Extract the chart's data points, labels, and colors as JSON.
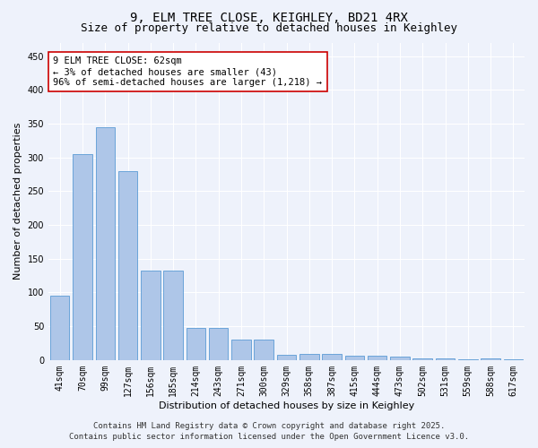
{
  "title1": "9, ELM TREE CLOSE, KEIGHLEY, BD21 4RX",
  "title2": "Size of property relative to detached houses in Keighley",
  "xlabel": "Distribution of detached houses by size in Keighley",
  "ylabel": "Number of detached properties",
  "categories": [
    "41sqm",
    "70sqm",
    "99sqm",
    "127sqm",
    "156sqm",
    "185sqm",
    "214sqm",
    "243sqm",
    "271sqm",
    "300sqm",
    "329sqm",
    "358sqm",
    "387sqm",
    "415sqm",
    "444sqm",
    "473sqm",
    "502sqm",
    "531sqm",
    "559sqm",
    "588sqm",
    "617sqm"
  ],
  "values": [
    95,
    305,
    345,
    280,
    132,
    132,
    47,
    47,
    30,
    30,
    8,
    9,
    9,
    7,
    7,
    5,
    3,
    2,
    1,
    2,
    1
  ],
  "bar_color": "#aec6e8",
  "bar_edge_color": "#5b9bd5",
  "annotation_text": "9 ELM TREE CLOSE: 62sqm\n← 3% of detached houses are smaller (43)\n96% of semi-detached houses are larger (1,218) →",
  "annotation_box_color": "#ffffff",
  "annotation_box_edge": "#cc0000",
  "ylim": [
    0,
    470
  ],
  "yticks": [
    0,
    50,
    100,
    150,
    200,
    250,
    300,
    350,
    400,
    450
  ],
  "footer1": "Contains HM Land Registry data © Crown copyright and database right 2025.",
  "footer2": "Contains public sector information licensed under the Open Government Licence v3.0.",
  "background_color": "#eef2fb",
  "grid_color": "#ffffff",
  "title_fontsize": 10,
  "subtitle_fontsize": 9,
  "axis_label_fontsize": 8,
  "tick_fontsize": 7,
  "annotation_fontsize": 7.5,
  "footer_fontsize": 6.5
}
